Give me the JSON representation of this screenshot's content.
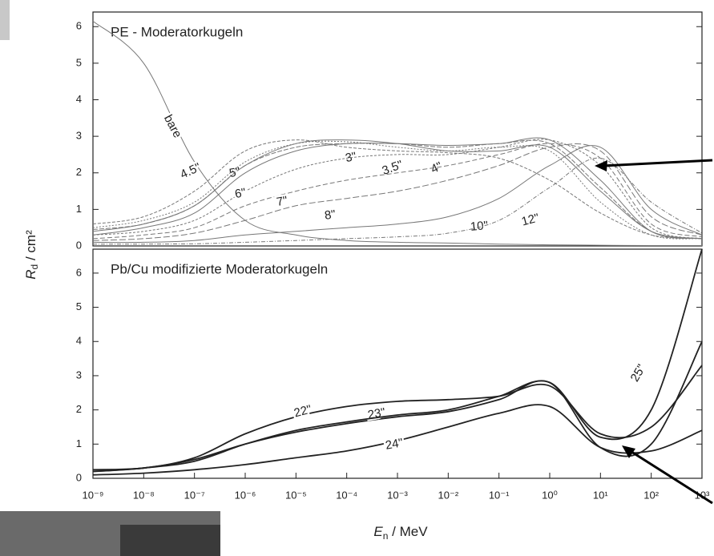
{
  "chart_data": [
    {
      "type": "line",
      "title": "PE - Moderatorkugeln",
      "x": [
        1e-09,
        1e-08,
        1e-07,
        1e-06,
        1e-05,
        0.0001,
        0.001,
        0.01,
        0.1,
        1,
        10,
        100,
        1000
      ],
      "xlim": [
        1e-09,
        1000
      ],
      "log_x": true,
      "ylim": [
        0,
        6.4
      ],
      "yticks": [
        0,
        1,
        2,
        3,
        4,
        5,
        6
      ],
      "series": [
        {
          "name": "bare",
          "color": "#777",
          "values": [
            6.15,
            5.0,
            2.3,
            0.7,
            0.3,
            0.15,
            0.1,
            0.08,
            0.05,
            0.03,
            0.02,
            0.01,
            0.01
          ]
        },
        {
          "name": "4.5\"",
          "color": "#777",
          "values": [
            0.6,
            0.8,
            1.5,
            2.6,
            2.9,
            2.7,
            2.6,
            2.55,
            2.4,
            1.8,
            0.9,
            0.3,
            0.2
          ]
        },
        {
          "name": "5\"",
          "color": "#777",
          "values": [
            0.4,
            0.6,
            1.1,
            2.2,
            2.8,
            2.9,
            2.8,
            2.6,
            2.6,
            2.7,
            1.5,
            0.4,
            0.2
          ]
        },
        {
          "name": "3\"",
          "color": "#777",
          "values": [
            0.5,
            0.7,
            1.2,
            2.3,
            2.8,
            2.85,
            2.7,
            2.6,
            2.7,
            2.6,
            1.2,
            0.3,
            0.2
          ]
        },
        {
          "name": "3.5\"",
          "color": "#777",
          "values": [
            0.45,
            0.6,
            1.1,
            2.2,
            2.7,
            2.8,
            2.8,
            2.7,
            2.8,
            2.8,
            1.6,
            0.4,
            0.2
          ]
        },
        {
          "name": "4\"",
          "color": "#777",
          "values": [
            0.3,
            0.5,
            0.9,
            2.0,
            2.6,
            2.8,
            2.8,
            2.75,
            2.8,
            2.9,
            1.8,
            0.4,
            0.2
          ]
        },
        {
          "name": "6\"",
          "color": "#777",
          "values": [
            0.3,
            0.4,
            0.7,
            1.5,
            2.1,
            2.4,
            2.5,
            2.5,
            2.7,
            2.9,
            2.2,
            0.5,
            0.2
          ]
        },
        {
          "name": "7\"",
          "color": "#777",
          "values": [
            0.2,
            0.3,
            0.5,
            1.1,
            1.5,
            1.8,
            2.0,
            2.2,
            2.5,
            2.8,
            2.4,
            0.6,
            0.25
          ]
        },
        {
          "name": "8\"",
          "color": "#777",
          "values": [
            0.15,
            0.2,
            0.35,
            0.7,
            1.1,
            1.3,
            1.5,
            1.8,
            2.2,
            2.7,
            2.6,
            0.8,
            0.3
          ]
        },
        {
          "name": "10\"",
          "color": "#777",
          "values": [
            0.1,
            0.1,
            0.15,
            0.3,
            0.4,
            0.5,
            0.6,
            0.8,
            1.3,
            2.2,
            2.7,
            1.0,
            0.3
          ]
        },
        {
          "name": "12\"",
          "color": "#777",
          "values": [
            0.05,
            0.05,
            0.06,
            0.1,
            0.15,
            0.2,
            0.25,
            0.35,
            0.7,
            1.6,
            2.4,
            1.2,
            0.35
          ]
        }
      ]
    },
    {
      "type": "line",
      "title": "Pb/Cu modifizierte Moderatorkugeln",
      "x": [
        1e-09,
        1e-08,
        1e-07,
        1e-06,
        1e-05,
        0.0001,
        0.001,
        0.01,
        0.1,
        1,
        10,
        100,
        1000
      ],
      "xlim": [
        1e-09,
        1000
      ],
      "log_x": true,
      "xticks": [
        {
          "value": 1e-09,
          "label": "10⁻⁹"
        },
        {
          "value": 1e-08,
          "label": "10⁻⁸"
        },
        {
          "value": 1e-07,
          "label": "10⁻⁷"
        },
        {
          "value": 1e-06,
          "label": "10⁻⁶"
        },
        {
          "value": 1e-05,
          "label": "10⁻⁵"
        },
        {
          "value": 0.0001,
          "label": "10⁻⁴"
        },
        {
          "value": 0.001,
          "label": "10⁻³"
        },
        {
          "value": 0.01,
          "label": "10⁻²"
        },
        {
          "value": 0.1,
          "label": "10⁻¹"
        },
        {
          "value": 1,
          "label": "10⁰"
        },
        {
          "value": 10,
          "label": "10¹"
        },
        {
          "value": 100,
          "label": "10²"
        },
        {
          "value": 1000,
          "label": "10³"
        }
      ],
      "ylim": [
        0,
        6.7
      ],
      "yticks": [
        0,
        1,
        2,
        3,
        4,
        5,
        6
      ],
      "series": [
        {
          "name": "22\"",
          "color": "#222",
          "values": [
            0.25,
            0.3,
            0.6,
            1.3,
            1.8,
            2.1,
            2.25,
            2.3,
            2.4,
            2.7,
            1.3,
            1.5,
            3.3
          ]
        },
        {
          "name": "23\"",
          "color": "#222",
          "values": [
            0.2,
            0.3,
            0.55,
            1.0,
            1.35,
            1.6,
            1.8,
            1.95,
            2.3,
            2.8,
            0.9,
            1.0,
            4.0
          ]
        },
        {
          "name": "24\"",
          "color": "#222",
          "values": [
            0.1,
            0.15,
            0.25,
            0.4,
            0.6,
            0.8,
            1.1,
            1.5,
            1.9,
            2.1,
            0.9,
            0.8,
            1.4
          ]
        },
        {
          "name": "25\"",
          "color": "#222",
          "values": [
            0.2,
            0.3,
            0.5,
            1.0,
            1.4,
            1.65,
            1.85,
            2.0,
            2.4,
            2.8,
            1.2,
            2.0,
            6.7
          ]
        }
      ]
    }
  ],
  "x_label": {
    "main": "E",
    "sub": "n",
    "unit": " / MeV"
  },
  "y_label": {
    "main": "R",
    "sub": "d",
    "unit": " / cm²"
  }
}
